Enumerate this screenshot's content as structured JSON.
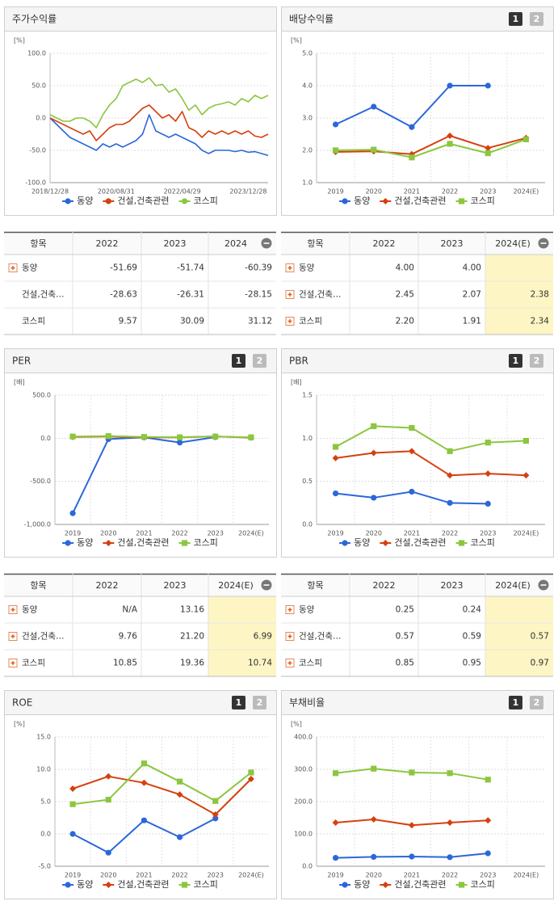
{
  "chart_data": [
    {
      "type": "line",
      "title": "주가수익률",
      "unit": "[%]",
      "markers": false,
      "grid": true,
      "categories": [
        "2018/12/28",
        null,
        null,
        null,
        null,
        null,
        null,
        null,
        null,
        null,
        "2020/08/31",
        null,
        null,
        null,
        null,
        null,
        null,
        null,
        null,
        null,
        "2022/04/29",
        null,
        null,
        null,
        null,
        null,
        null,
        null,
        null,
        null,
        "2023/12/28",
        null,
        null,
        null
      ],
      "series": [
        {
          "name": "동양",
          "color": "#2b67d9",
          "values": [
            0,
            -10,
            -20,
            -30,
            -35,
            -40,
            -45,
            -50,
            -40,
            -45,
            -40,
            -45,
            -40,
            -35,
            -25,
            5,
            -20,
            -25,
            -30,
            -25,
            -30,
            -35,
            -40,
            -50,
            -55,
            -50,
            -50,
            -50,
            -52,
            -50,
            -53,
            -52,
            -55,
            -58
          ]
        },
        {
          "name": "건설,건축관련",
          "color": "#d6400f",
          "values": [
            0,
            -5,
            -10,
            -15,
            -20,
            -25,
            -20,
            -35,
            -25,
            -15,
            -10,
            -10,
            -5,
            5,
            15,
            20,
            10,
            0,
            5,
            -5,
            10,
            -15,
            -20,
            -30,
            -20,
            -25,
            -20,
            -25,
            -20,
            -25,
            -20,
            -28,
            -30,
            -25
          ]
        },
        {
          "name": "코스피",
          "color": "#8cc63f",
          "values": [
            5,
            0,
            -5,
            -5,
            0,
            0,
            -5,
            -15,
            5,
            20,
            30,
            50,
            55,
            60,
            55,
            62,
            50,
            52,
            40,
            45,
            30,
            12,
            20,
            5,
            15,
            20,
            22,
            25,
            20,
            30,
            25,
            35,
            30,
            35
          ]
        }
      ],
      "ylim": [
        -100,
        100
      ],
      "yticks": [
        {
          "value": -100,
          "label": "-100.0"
        },
        {
          "value": -50,
          "label": "-50.0"
        },
        {
          "value": 0,
          "label": "0.0"
        },
        {
          "value": 50,
          "label": "50.0"
        },
        {
          "value": 100,
          "label": "100.0"
        }
      ]
    },
    {
      "type": "line",
      "title": "배당수익률",
      "unit": "[%]",
      "markers": true,
      "grid": true,
      "buttons": [
        "1",
        "2"
      ],
      "categories": [
        "2019",
        "2020",
        "2021",
        "2022",
        "2023",
        "2024(E)"
      ],
      "series": [
        {
          "name": "동양",
          "color": "#2b67d9",
          "marker": "circle",
          "values": [
            2.8,
            3.35,
            2.72,
            4.0,
            4.0,
            null
          ]
        },
        {
          "name": "건설,건축관련",
          "color": "#d6400f",
          "marker": "diamond",
          "values": [
            1.95,
            1.97,
            1.88,
            2.45,
            2.07,
            2.38
          ]
        },
        {
          "name": "코스피",
          "color": "#8cc63f",
          "marker": "square",
          "values": [
            2.0,
            2.02,
            1.78,
            2.2,
            1.91,
            2.34
          ]
        }
      ],
      "ylim": [
        1,
        5
      ],
      "yticks": [
        {
          "value": 1,
          "label": "1.0"
        },
        {
          "value": 2,
          "label": "2.0"
        },
        {
          "value": 3,
          "label": "3.0"
        },
        {
          "value": 4,
          "label": "4.0"
        },
        {
          "value": 5,
          "label": "5.0"
        }
      ]
    },
    {
      "type": "line",
      "title": "PER",
      "unit": "[배]",
      "markers": true,
      "grid": true,
      "buttons": [
        "1",
        "2"
      ],
      "categories": [
        "2019",
        "2020",
        "2021",
        "2022",
        "2023",
        "2024(E)"
      ],
      "series": [
        {
          "name": "동양",
          "color": "#2b67d9",
          "marker": "circle",
          "values": [
            -870,
            -10,
            10,
            -50,
            13.16,
            null
          ]
        },
        {
          "name": "건설,건축관련",
          "color": "#d6400f",
          "marker": "diamond",
          "values": [
            15,
            20,
            10,
            9.76,
            21.2,
            6.99
          ]
        },
        {
          "name": "코스피",
          "color": "#8cc63f",
          "marker": "square",
          "values": [
            20,
            25,
            15,
            10.85,
            19.36,
            10.74
          ]
        }
      ],
      "ylim": [
        -1000,
        500
      ],
      "yticks": [
        {
          "value": -1000,
          "label": "-1,000.0"
        },
        {
          "value": -500,
          "label": "-500.0"
        },
        {
          "value": 0,
          "label": "0.0"
        },
        {
          "value": 500,
          "label": "500.0"
        }
      ]
    },
    {
      "type": "line",
      "title": "PBR",
      "unit": "[배]",
      "markers": true,
      "grid": true,
      "buttons": [
        "1",
        "2"
      ],
      "categories": [
        "2019",
        "2020",
        "2021",
        "2022",
        "2023",
        "2024(E)"
      ],
      "series": [
        {
          "name": "동양",
          "color": "#2b67d9",
          "marker": "circle",
          "values": [
            0.36,
            0.31,
            0.38,
            0.25,
            0.24,
            null
          ]
        },
        {
          "name": "건설,건축관련",
          "color": "#d6400f",
          "marker": "diamond",
          "values": [
            0.77,
            0.83,
            0.85,
            0.57,
            0.59,
            0.57
          ]
        },
        {
          "name": "코스피",
          "color": "#8cc63f",
          "marker": "square",
          "values": [
            0.9,
            1.14,
            1.12,
            0.85,
            0.95,
            0.97
          ]
        }
      ],
      "ylim": [
        0,
        1.5
      ],
      "yticks": [
        {
          "value": 0,
          "label": "0.0"
        },
        {
          "value": 0.5,
          "label": "0.5"
        },
        {
          "value": 1,
          "label": "1.0"
        },
        {
          "value": 1.5,
          "label": "1.5"
        }
      ]
    },
    {
      "type": "line",
      "title": "ROE",
      "unit": "[%]",
      "markers": true,
      "grid": true,
      "buttons": [
        "1",
        "2"
      ],
      "categories": [
        "2019",
        "2020",
        "2021",
        "2022",
        "2023",
        "2024(E)"
      ],
      "series": [
        {
          "name": "동양",
          "color": "#2b67d9",
          "marker": "circle",
          "values": [
            0,
            -2.9,
            2.1,
            -0.5,
            2.4,
            null
          ]
        },
        {
          "name": "건설,건축관련",
          "color": "#d6400f",
          "marker": "diamond",
          "values": [
            7.0,
            8.9,
            7.9,
            6.1,
            3.0,
            8.5
          ]
        },
        {
          "name": "코스피",
          "color": "#8cc63f",
          "marker": "square",
          "values": [
            4.6,
            5.3,
            10.9,
            8.1,
            5.1,
            9.5
          ]
        }
      ],
      "ylim": [
        -5,
        15
      ],
      "yticks": [
        {
          "value": -5,
          "label": "-5.0"
        },
        {
          "value": 0,
          "label": "0.0"
        },
        {
          "value": 5,
          "label": "5.0"
        },
        {
          "value": 10,
          "label": "10.0"
        },
        {
          "value": 15,
          "label": "15.0"
        }
      ]
    },
    {
      "type": "line",
      "title": "부채비율",
      "unit": "[%]",
      "markers": true,
      "grid": true,
      "buttons": [
        "1",
        "2"
      ],
      "categories": [
        "2019",
        "2020",
        "2021",
        "2022",
        "2023",
        "2024(E)"
      ],
      "series": [
        {
          "name": "동양",
          "color": "#2b67d9",
          "marker": "circle",
          "values": [
            26,
            29,
            30,
            28,
            40,
            null
          ]
        },
        {
          "name": "건설,건축관련",
          "color": "#d6400f",
          "marker": "diamond",
          "values": [
            135,
            145,
            127,
            135,
            142,
            null
          ]
        },
        {
          "name": "코스피",
          "color": "#8cc63f",
          "marker": "square",
          "values": [
            288,
            302,
            290,
            288,
            268,
            null
          ]
        }
      ],
      "ylim": [
        0,
        400
      ],
      "yticks": [
        {
          "value": 0,
          "label": "0.0"
        },
        {
          "value": 100,
          "label": "100.0"
        },
        {
          "value": 200,
          "label": "200.0"
        },
        {
          "value": 300,
          "label": "300.0"
        },
        {
          "value": 400,
          "label": "400.0"
        }
      ]
    }
  ],
  "tables": [
    {
      "header": [
        "항목",
        "2022",
        "2023",
        "2024"
      ],
      "highlight_last": false,
      "rows": [
        {
          "name": "동양",
          "expandable": true,
          "values": [
            "-51.69",
            "-51.74",
            "-60.39"
          ]
        },
        {
          "name": "건설,건축…",
          "expandable": false,
          "values": [
            "-28.63",
            "-26.31",
            "-28.15"
          ]
        },
        {
          "name": "코스피",
          "expandable": false,
          "values": [
            "9.57",
            "30.09",
            "31.12"
          ]
        }
      ]
    },
    {
      "header": [
        "항목",
        "2022",
        "2023",
        "2024(E)"
      ],
      "highlight_last": true,
      "rows": [
        {
          "name": "동양",
          "expandable": true,
          "values": [
            "4.00",
            "4.00",
            null
          ]
        },
        {
          "name": "건설,건축…",
          "expandable": true,
          "values": [
            "2.45",
            "2.07",
            "2.38"
          ]
        },
        {
          "name": "코스피",
          "expandable": true,
          "values": [
            "2.20",
            "1.91",
            "2.34"
          ]
        }
      ]
    },
    {
      "header": [
        "항목",
        "2022",
        "2023",
        "2024(E)"
      ],
      "highlight_last": true,
      "rows": [
        {
          "name": "동양",
          "expandable": true,
          "values": [
            "N/A",
            "13.16",
            null
          ]
        },
        {
          "name": "건설,건축…",
          "expandable": true,
          "values": [
            "9.76",
            "21.20",
            "6.99"
          ]
        },
        {
          "name": "코스피",
          "expandable": true,
          "values": [
            "10.85",
            "19.36",
            "10.74"
          ]
        }
      ]
    },
    {
      "header": [
        "항목",
        "2022",
        "2023",
        "2024(E)"
      ],
      "highlight_last": true,
      "rows": [
        {
          "name": "동양",
          "expandable": true,
          "values": [
            "0.25",
            "0.24",
            null
          ]
        },
        {
          "name": "건설,건축…",
          "expandable": true,
          "values": [
            "0.57",
            "0.59",
            "0.57"
          ]
        },
        {
          "name": "코스피",
          "expandable": true,
          "values": [
            "0.85",
            "0.95",
            "0.97"
          ]
        }
      ]
    }
  ]
}
